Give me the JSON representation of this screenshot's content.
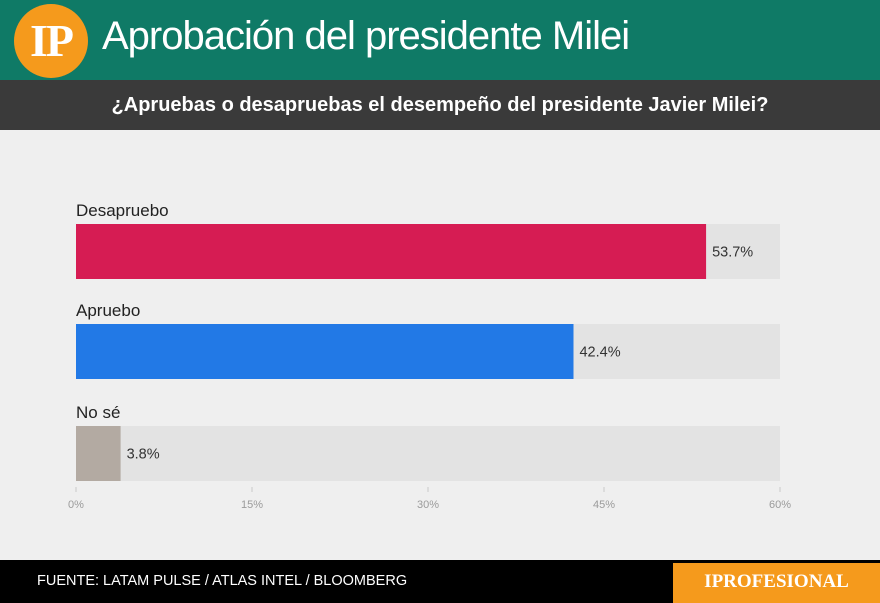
{
  "header": {
    "logo_text": "IP",
    "title": "Aprobación del presidente Milei"
  },
  "question": "¿Apruebas o desapruebas el desempeño del presidente Javier Milei?",
  "footer": {
    "source": "FUENTE: LATAM PULSE / ATLAS INTEL / BLOOMBERG",
    "brand": "IPROFESIONAL"
  },
  "colors": {
    "header_bg": "#0f7a66",
    "accent_orange": "#f59a1c",
    "track": "#e3e3e3"
  },
  "chart_data": {
    "type": "bar",
    "orientation": "horizontal",
    "title": "¿Apruebas o desapruebas el desempeño del presidente Javier Milei?",
    "categories": [
      "Desapruebo",
      "Apruebo",
      "No sé"
    ],
    "values": [
      53.7,
      42.4,
      3.8
    ],
    "value_labels": [
      "53.7%",
      "42.4%",
      "3.8%"
    ],
    "bar_colors": [
      "#d61c53",
      "#2279e6",
      "#b3aaa2"
    ],
    "xlim": [
      0,
      60
    ],
    "xticks": [
      0,
      15,
      30,
      45,
      60
    ],
    "xtick_labels": [
      "0%",
      "15%",
      "30%",
      "45%",
      "60%"
    ],
    "xlabel": "",
    "ylabel": ""
  }
}
